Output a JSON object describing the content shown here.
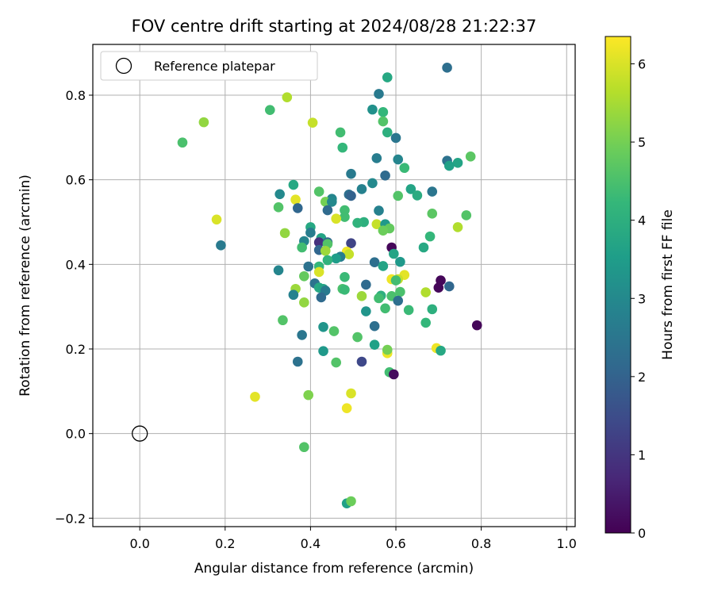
{
  "chart_data": {
    "type": "scatter",
    "title": "FOV centre drift starting at 2024/08/28 21:22:37",
    "xlabel": "Angular distance from reference (arcmin)",
    "ylabel": "Rotation from reference (arcmin)",
    "xlim": [
      -0.11,
      1.02
    ],
    "ylim": [
      -0.22,
      0.92
    ],
    "xticks": [
      "0.0",
      "0.2",
      "0.4",
      "0.6",
      "0.8",
      "1.0"
    ],
    "yticks": [
      "−0.2",
      "0.0",
      "0.2",
      "0.4",
      "0.6",
      "0.8"
    ],
    "grid": true,
    "legend": {
      "location": "upper-left",
      "entries": [
        {
          "label": "Reference platepar",
          "marker": "open-circle",
          "x": 0.0,
          "y": 0.0
        }
      ]
    },
    "colorbar": {
      "label": "Hours from first FF file",
      "colormap": "viridis",
      "range": [
        0,
        6.35
      ],
      "ticks": [
        "0",
        "1",
        "2",
        "3",
        "4",
        "5",
        "6"
      ],
      "stops": [
        "#440154",
        "#482878",
        "#3e4989",
        "#31688e",
        "#26828e",
        "#1f9e89",
        "#35b779",
        "#6ece58",
        "#b5de2b",
        "#fde725"
      ]
    },
    "points": [
      {
        "x": 0.72,
        "y": 0.865,
        "h": 2.3
      },
      {
        "x": 0.58,
        "y": 0.842,
        "h": 3.8
      },
      {
        "x": 0.56,
        "y": 0.803,
        "h": 2.6
      },
      {
        "x": 0.57,
        "y": 0.76,
        "h": 4.2
      },
      {
        "x": 0.545,
        "y": 0.766,
        "h": 3.2
      },
      {
        "x": 0.345,
        "y": 0.795,
        "h": 5.6
      },
      {
        "x": 0.305,
        "y": 0.765,
        "h": 4.4
      },
      {
        "x": 0.15,
        "y": 0.736,
        "h": 5.3
      },
      {
        "x": 0.405,
        "y": 0.735,
        "h": 5.8
      },
      {
        "x": 0.57,
        "y": 0.738,
        "h": 4.6
      },
      {
        "x": 0.1,
        "y": 0.688,
        "h": 4.5
      },
      {
        "x": 0.47,
        "y": 0.712,
        "h": 4.4
      },
      {
        "x": 0.58,
        "y": 0.712,
        "h": 4.0
      },
      {
        "x": 0.6,
        "y": 0.699,
        "h": 2.5
      },
      {
        "x": 0.475,
        "y": 0.676,
        "h": 4.2
      },
      {
        "x": 0.555,
        "y": 0.651,
        "h": 2.7
      },
      {
        "x": 0.605,
        "y": 0.648,
        "h": 2.9
      },
      {
        "x": 0.72,
        "y": 0.645,
        "h": 2.4
      },
      {
        "x": 0.775,
        "y": 0.655,
        "h": 4.7
      },
      {
        "x": 0.745,
        "y": 0.64,
        "h": 3.7
      },
      {
        "x": 0.725,
        "y": 0.633,
        "h": 3.6
      },
      {
        "x": 0.62,
        "y": 0.628,
        "h": 4.3
      },
      {
        "x": 0.495,
        "y": 0.614,
        "h": 2.6
      },
      {
        "x": 0.575,
        "y": 0.61,
        "h": 2.2
      },
      {
        "x": 0.36,
        "y": 0.588,
        "h": 3.8
      },
      {
        "x": 0.545,
        "y": 0.592,
        "h": 3.0
      },
      {
        "x": 0.52,
        "y": 0.578,
        "h": 2.8
      },
      {
        "x": 0.635,
        "y": 0.578,
        "h": 3.7
      },
      {
        "x": 0.685,
        "y": 0.572,
        "h": 2.5
      },
      {
        "x": 0.42,
        "y": 0.572,
        "h": 4.6
      },
      {
        "x": 0.328,
        "y": 0.566,
        "h": 3.0
      },
      {
        "x": 0.49,
        "y": 0.565,
        "h": 2.3
      },
      {
        "x": 0.495,
        "y": 0.562,
        "h": 2.0
      },
      {
        "x": 0.65,
        "y": 0.563,
        "h": 3.9
      },
      {
        "x": 0.605,
        "y": 0.562,
        "h": 4.6
      },
      {
        "x": 0.45,
        "y": 0.555,
        "h": 2.9
      },
      {
        "x": 0.365,
        "y": 0.553,
        "h": 6.1
      },
      {
        "x": 0.435,
        "y": 0.548,
        "h": 5.0
      },
      {
        "x": 0.45,
        "y": 0.548,
        "h": 3.0
      },
      {
        "x": 0.325,
        "y": 0.535,
        "h": 4.6
      },
      {
        "x": 0.37,
        "y": 0.533,
        "h": 2.1
      },
      {
        "x": 0.44,
        "y": 0.528,
        "h": 2.2
      },
      {
        "x": 0.48,
        "y": 0.528,
        "h": 4.4
      },
      {
        "x": 0.56,
        "y": 0.527,
        "h": 2.8
      },
      {
        "x": 0.685,
        "y": 0.52,
        "h": 4.7
      },
      {
        "x": 0.765,
        "y": 0.516,
        "h": 4.6
      },
      {
        "x": 0.48,
        "y": 0.512,
        "h": 4.4
      },
      {
        "x": 0.46,
        "y": 0.508,
        "h": 6.0
      },
      {
        "x": 0.18,
        "y": 0.506,
        "h": 6.0
      },
      {
        "x": 0.525,
        "y": 0.5,
        "h": 4.0
      },
      {
        "x": 0.51,
        "y": 0.498,
        "h": 4.1
      },
      {
        "x": 0.555,
        "y": 0.495,
        "h": 5.8
      },
      {
        "x": 0.575,
        "y": 0.495,
        "h": 3.4
      },
      {
        "x": 0.745,
        "y": 0.488,
        "h": 5.6
      },
      {
        "x": 0.4,
        "y": 0.488,
        "h": 3.8
      },
      {
        "x": 0.585,
        "y": 0.485,
        "h": 4.8
      },
      {
        "x": 0.57,
        "y": 0.48,
        "h": 4.9
      },
      {
        "x": 0.34,
        "y": 0.474,
        "h": 5.3
      },
      {
        "x": 0.4,
        "y": 0.475,
        "h": 2.7
      },
      {
        "x": 0.68,
        "y": 0.466,
        "h": 4.2
      },
      {
        "x": 0.425,
        "y": 0.462,
        "h": 3.7
      },
      {
        "x": 0.385,
        "y": 0.455,
        "h": 2.9
      },
      {
        "x": 0.42,
        "y": 0.452,
        "h": 0.9
      },
      {
        "x": 0.44,
        "y": 0.452,
        "h": 2.2
      },
      {
        "x": 0.44,
        "y": 0.448,
        "h": 4.6
      },
      {
        "x": 0.495,
        "y": 0.45,
        "h": 1.3
      },
      {
        "x": 0.19,
        "y": 0.445,
        "h": 2.6
      },
      {
        "x": 0.38,
        "y": 0.44,
        "h": 4.4
      },
      {
        "x": 0.59,
        "y": 0.44,
        "h": 0.1
      },
      {
        "x": 0.665,
        "y": 0.44,
        "h": 3.8
      },
      {
        "x": 0.42,
        "y": 0.434,
        "h": 2.1
      },
      {
        "x": 0.435,
        "y": 0.432,
        "h": 5.4
      },
      {
        "x": 0.485,
        "y": 0.43,
        "h": 6.2
      },
      {
        "x": 0.49,
        "y": 0.424,
        "h": 5.8
      },
      {
        "x": 0.595,
        "y": 0.425,
        "h": 3.7
      },
      {
        "x": 0.47,
        "y": 0.418,
        "h": 2.7
      },
      {
        "x": 0.46,
        "y": 0.414,
        "h": 3.5
      },
      {
        "x": 0.44,
        "y": 0.41,
        "h": 4.1
      },
      {
        "x": 0.55,
        "y": 0.405,
        "h": 2.3
      },
      {
        "x": 0.61,
        "y": 0.406,
        "h": 3.4
      },
      {
        "x": 0.395,
        "y": 0.395,
        "h": 2.4
      },
      {
        "x": 0.42,
        "y": 0.395,
        "h": 4.2
      },
      {
        "x": 0.57,
        "y": 0.396,
        "h": 3.7
      },
      {
        "x": 0.325,
        "y": 0.386,
        "h": 2.9
      },
      {
        "x": 0.42,
        "y": 0.382,
        "h": 6.0
      },
      {
        "x": 0.385,
        "y": 0.372,
        "h": 4.8
      },
      {
        "x": 0.48,
        "y": 0.37,
        "h": 4.3
      },
      {
        "x": 0.62,
        "y": 0.375,
        "h": 6.1
      },
      {
        "x": 0.59,
        "y": 0.365,
        "h": 6.2
      },
      {
        "x": 0.605,
        "y": 0.365,
        "h": 5.8
      },
      {
        "x": 0.6,
        "y": 0.362,
        "h": 4.4
      },
      {
        "x": 0.705,
        "y": 0.362,
        "h": 0.1
      },
      {
        "x": 0.41,
        "y": 0.355,
        "h": 2.4
      },
      {
        "x": 0.53,
        "y": 0.352,
        "h": 2.2
      },
      {
        "x": 0.42,
        "y": 0.345,
        "h": 3.8
      },
      {
        "x": 0.725,
        "y": 0.348,
        "h": 2.1
      },
      {
        "x": 0.7,
        "y": 0.345,
        "h": 0.1
      },
      {
        "x": 0.475,
        "y": 0.342,
        "h": 4.5
      },
      {
        "x": 0.365,
        "y": 0.342,
        "h": 5.4
      },
      {
        "x": 0.43,
        "y": 0.342,
        "h": 3.7
      },
      {
        "x": 0.435,
        "y": 0.338,
        "h": 2.6
      },
      {
        "x": 0.61,
        "y": 0.335,
        "h": 4.5
      },
      {
        "x": 0.48,
        "y": 0.34,
        "h": 4.3
      },
      {
        "x": 0.67,
        "y": 0.334,
        "h": 5.6
      },
      {
        "x": 0.36,
        "y": 0.328,
        "h": 2.8
      },
      {
        "x": 0.565,
        "y": 0.326,
        "h": 4.0
      },
      {
        "x": 0.59,
        "y": 0.325,
        "h": 4.5
      },
      {
        "x": 0.52,
        "y": 0.325,
        "h": 5.4
      },
      {
        "x": 0.425,
        "y": 0.322,
        "h": 2.2
      },
      {
        "x": 0.56,
        "y": 0.32,
        "h": 4.4
      },
      {
        "x": 0.605,
        "y": 0.314,
        "h": 2.3
      },
      {
        "x": 0.385,
        "y": 0.31,
        "h": 5.3
      },
      {
        "x": 0.575,
        "y": 0.296,
        "h": 4.4
      },
      {
        "x": 0.685,
        "y": 0.294,
        "h": 4.0
      },
      {
        "x": 0.63,
        "y": 0.292,
        "h": 4.3
      },
      {
        "x": 0.53,
        "y": 0.289,
        "h": 3.3
      },
      {
        "x": 0.335,
        "y": 0.268,
        "h": 4.6
      },
      {
        "x": 0.67,
        "y": 0.262,
        "h": 4.2
      },
      {
        "x": 0.79,
        "y": 0.256,
        "h": 0.1
      },
      {
        "x": 0.55,
        "y": 0.254,
        "h": 2.3
      },
      {
        "x": 0.43,
        "y": 0.252,
        "h": 3.3
      },
      {
        "x": 0.455,
        "y": 0.242,
        "h": 4.6
      },
      {
        "x": 0.38,
        "y": 0.233,
        "h": 2.5
      },
      {
        "x": 0.51,
        "y": 0.228,
        "h": 4.6
      },
      {
        "x": 0.55,
        "y": 0.21,
        "h": 3.6
      },
      {
        "x": 0.695,
        "y": 0.202,
        "h": 6.2
      },
      {
        "x": 0.705,
        "y": 0.196,
        "h": 3.8
      },
      {
        "x": 0.43,
        "y": 0.195,
        "h": 3.4
      },
      {
        "x": 0.58,
        "y": 0.19,
        "h": 6.2
      },
      {
        "x": 0.58,
        "y": 0.198,
        "h": 5.0
      },
      {
        "x": 0.37,
        "y": 0.17,
        "h": 2.4
      },
      {
        "x": 0.52,
        "y": 0.17,
        "h": 1.4
      },
      {
        "x": 0.46,
        "y": 0.168,
        "h": 4.6
      },
      {
        "x": 0.585,
        "y": 0.145,
        "h": 4.4
      },
      {
        "x": 0.595,
        "y": 0.14,
        "h": 0.2
      },
      {
        "x": 0.495,
        "y": 0.095,
        "h": 6.0
      },
      {
        "x": 0.395,
        "y": 0.091,
        "h": 5.1
      },
      {
        "x": 0.27,
        "y": 0.087,
        "h": 6.1
      },
      {
        "x": 0.485,
        "y": 0.06,
        "h": 6.2
      },
      {
        "x": 0.385,
        "y": -0.032,
        "h": 4.6
      },
      {
        "x": 0.485,
        "y": -0.165,
        "h": 3.6
      },
      {
        "x": 0.495,
        "y": -0.16,
        "h": 4.9
      }
    ]
  }
}
